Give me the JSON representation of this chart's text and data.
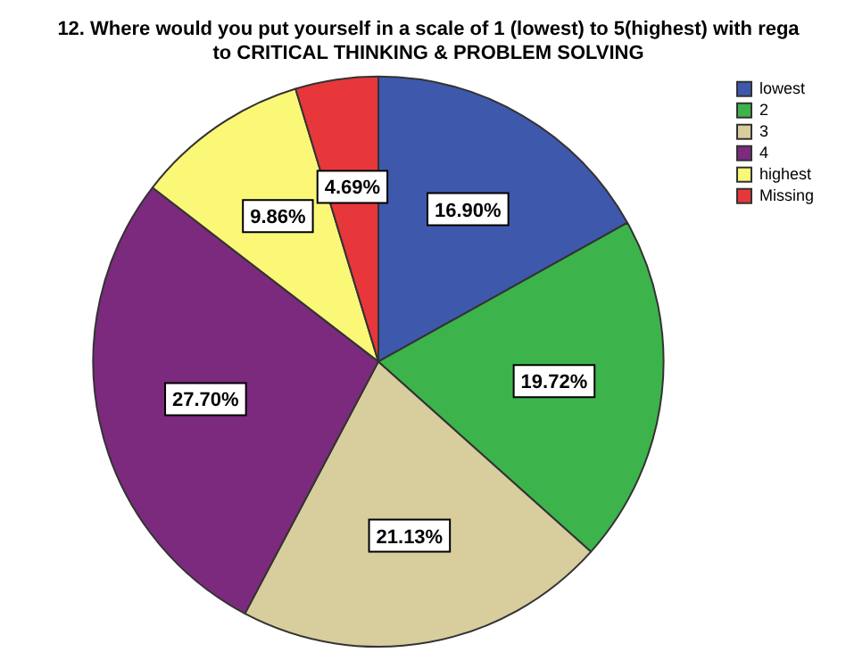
{
  "chart_data": {
    "type": "pie",
    "title": "12. Where would you put yourself in a scale of 1 (lowest) to 5(highest) with rega\nto CRITICAL THINKING & PROBLEM SOLVING",
    "categories": [
      "lowest",
      "2",
      "3",
      "4",
      "highest",
      "Missing"
    ],
    "values": [
      16.9,
      19.72,
      21.13,
      27.7,
      9.86,
      4.69
    ],
    "value_labels": [
      "16.90%",
      "19.72%",
      "21.13%",
      "27.70%",
      "9.86%",
      "4.69%"
    ],
    "colors": [
      "#3e58ac",
      "#3cb44b",
      "#d8cd9c",
      "#7c2a7e",
      "#fbf877",
      "#e8373b"
    ],
    "legend": "top right"
  }
}
